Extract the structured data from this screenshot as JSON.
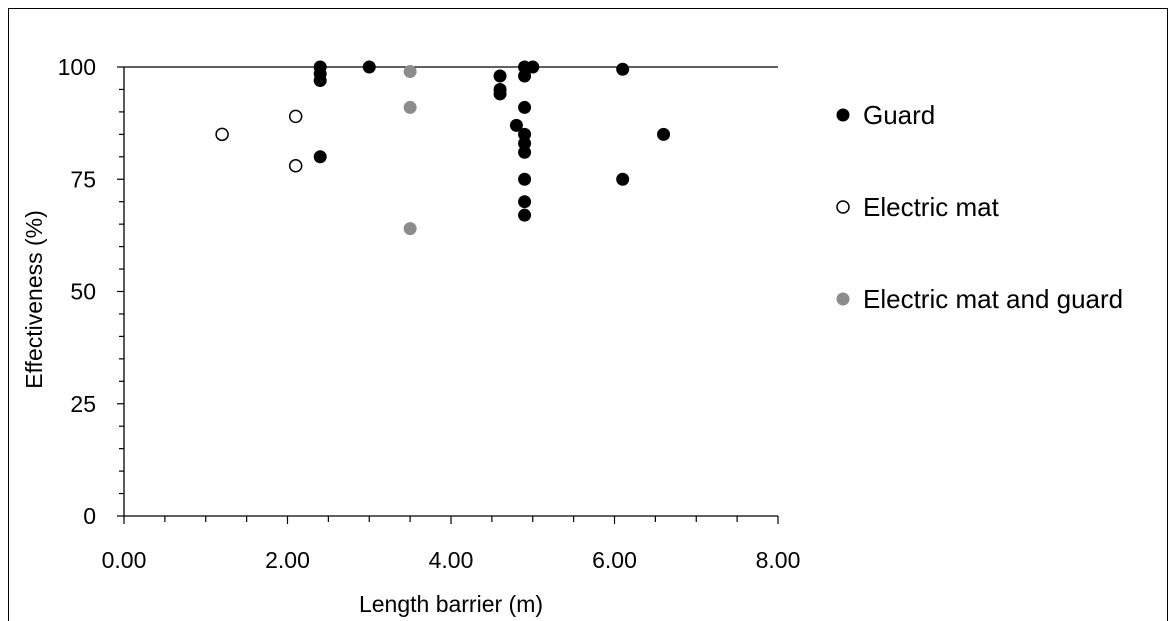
{
  "chart_data": {
    "type": "scatter",
    "title": "",
    "xlabel": "Length barrier (m)",
    "ylabel": "Effectiveness (%)",
    "xlim": [
      0,
      8
    ],
    "ylim": [
      0,
      100
    ],
    "xticks": [
      "0.00",
      "2.00",
      "4.00",
      "6.00",
      "8.00"
    ],
    "yticks": [
      "0",
      "25",
      "50",
      "75",
      "100"
    ],
    "grid": false,
    "legend_position": "right",
    "series": [
      {
        "name": "Guard",
        "marker": "filled-black",
        "color": "#000000",
        "points": [
          [
            2.4,
            100
          ],
          [
            2.4,
            98.5
          ],
          [
            2.4,
            97
          ],
          [
            2.4,
            80
          ],
          [
            3.0,
            100
          ],
          [
            4.6,
            98
          ],
          [
            4.6,
            95
          ],
          [
            4.6,
            94
          ],
          [
            4.8,
            87
          ],
          [
            4.9,
            100
          ],
          [
            4.9,
            98
          ],
          [
            4.9,
            91
          ],
          [
            4.9,
            85
          ],
          [
            4.9,
            83
          ],
          [
            4.9,
            81
          ],
          [
            4.9,
            75
          ],
          [
            4.9,
            70
          ],
          [
            4.9,
            67
          ],
          [
            5.0,
            100
          ],
          [
            6.1,
            99.5
          ],
          [
            6.1,
            75
          ],
          [
            6.6,
            85
          ]
        ]
      },
      {
        "name": "Electric mat",
        "marker": "open-circle",
        "color": "#000000",
        "points": [
          [
            1.2,
            85
          ],
          [
            2.1,
            89
          ],
          [
            2.1,
            78
          ]
        ]
      },
      {
        "name": "Electric mat and guard",
        "marker": "filled-gray",
        "color": "#8c8c8c",
        "points": [
          [
            3.5,
            99
          ],
          [
            3.5,
            91
          ],
          [
            3.5,
            64
          ]
        ]
      }
    ]
  }
}
